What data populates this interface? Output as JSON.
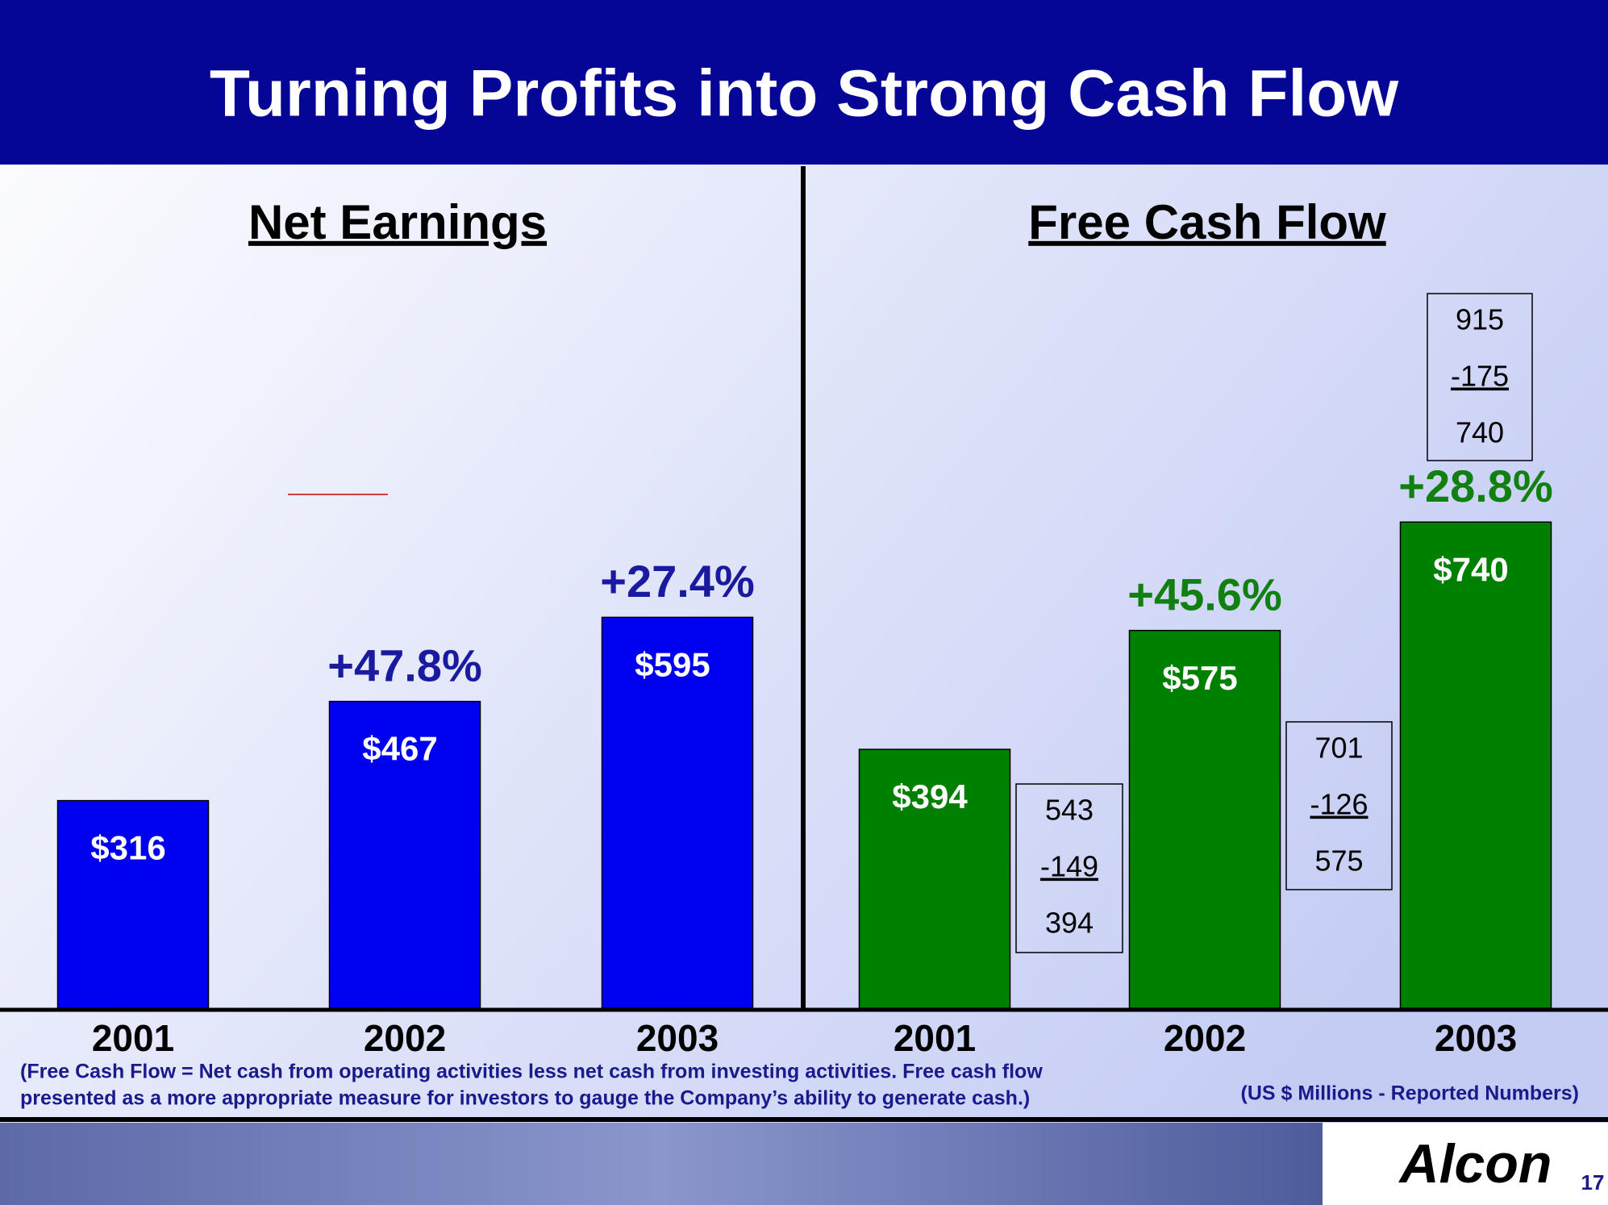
{
  "title": "Turning Profits into Strong Cash Flow",
  "chart_data": [
    {
      "type": "bar",
      "title": "Net Earnings",
      "categories": [
        "2001",
        "2002",
        "2003"
      ],
      "values": [
        316,
        467,
        595
      ],
      "value_labels": [
        "$316",
        "$467",
        "$595"
      ],
      "color": "#0000f0",
      "annotations": [
        {
          "category": "2002",
          "text": "+47.8%"
        },
        {
          "category": "2003",
          "text": "+27.4%"
        }
      ]
    },
    {
      "type": "bar",
      "title": "Free Cash Flow",
      "categories": [
        "2001",
        "2002",
        "2003"
      ],
      "values": [
        394,
        575,
        740
      ],
      "value_labels": [
        "$394",
        "$575",
        "$740"
      ],
      "color": "#008000",
      "annotations": [
        {
          "category": "2002",
          "text": "+45.6%"
        },
        {
          "category": "2003",
          "text": "+28.8%"
        }
      ],
      "boxes": [
        {
          "category": "2001",
          "lines": [
            "543",
            "-149",
            "394"
          ]
        },
        {
          "category": "2002",
          "lines": [
            "701",
            "-126",
            "575"
          ]
        },
        {
          "category": "2003",
          "lines": [
            "915",
            "-175",
            "740"
          ]
        }
      ]
    }
  ],
  "footnote": [
    "(Free Cash Flow = Net cash from operating activities less net cash from investing activities.  Free cash flow",
    "presented as a more appropriate measure for investors  to gauge the Company’s ability to generate cash.)"
  ],
  "unit_note": "(US $ Millions - Reported Numbers)",
  "logo": "Alcon",
  "page_number": "17"
}
